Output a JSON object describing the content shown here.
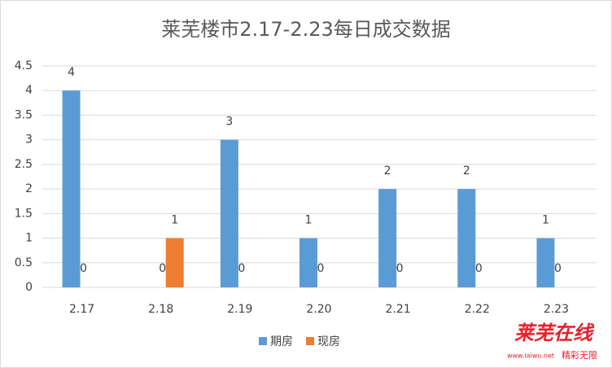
{
  "chart_data": {
    "type": "bar",
    "title": "莱芜楼市2.17-2.23每日成交数据",
    "categories": [
      "2.17",
      "2.18",
      "2.19",
      "2.20",
      "2.21",
      "2.22",
      "2.23"
    ],
    "series": [
      {
        "name": "期房",
        "color": "#5b9bd5",
        "values": [
          4,
          0,
          3,
          1,
          2,
          2,
          1
        ]
      },
      {
        "name": "现房",
        "color": "#ed7d31",
        "values": [
          0,
          1,
          0,
          0,
          0,
          0,
          0
        ]
      }
    ],
    "ylim": [
      0,
      4.5
    ],
    "yticks": [
      0,
      0.5,
      1,
      1.5,
      2,
      2.5,
      3,
      3.5,
      4,
      4.5
    ],
    "grid": true,
    "data_labels": true,
    "legend": "bottom"
  },
  "watermark": {
    "title": "莱芜在线",
    "url": "www.laiwu.net",
    "slogan": "精彩无限"
  }
}
